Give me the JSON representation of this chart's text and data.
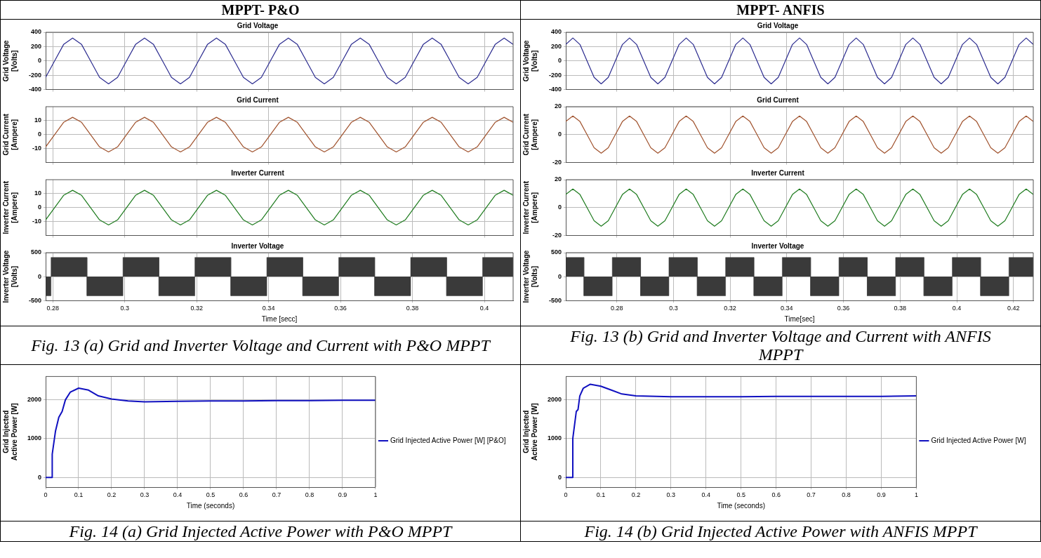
{
  "chart_data": [
    {
      "type": "line",
      "title": "Grid Voltage",
      "ylabel": "Grid Voltage\n[Volts]",
      "annotations": [
        "MPPT- P&O"
      ],
      "xlim": [
        0.278,
        0.408
      ],
      "xticks": [
        0.28,
        0.3,
        0.32,
        0.34,
        0.36,
        0.38,
        0.4
      ],
      "ylim": [
        -400,
        400
      ],
      "yticks": [
        -400,
        -200,
        0,
        200,
        400
      ],
      "grid": true,
      "tick_labels": "y",
      "x": [
        0.278,
        0.2805,
        0.283,
        0.2855,
        0.288,
        0.2905,
        0.293,
        0.2955,
        0.298,
        0.3005,
        0.303,
        0.3055,
        0.308,
        0.3105,
        0.313,
        0.3155,
        0.318,
        0.3205,
        0.323,
        0.3255,
        0.328,
        0.3305,
        0.333,
        0.3355,
        0.338,
        0.3405,
        0.343,
        0.3455,
        0.348,
        0.3505,
        0.353,
        0.3555,
        0.358,
        0.3605,
        0.363,
        0.3655,
        0.368,
        0.3705,
        0.373,
        0.3755,
        0.378,
        0.3805,
        0.383,
        0.3855,
        0.388,
        0.3905,
        0.393,
        0.3955,
        0.398,
        0.4005,
        0.403,
        0.4055,
        0.408
      ],
      "series": [
        {
          "color": "#2b2b8f",
          "values": [
            -230,
            0,
            230,
            320,
            230,
            0,
            -230,
            -320,
            -230,
            0,
            230,
            320,
            230,
            0,
            -230,
            -320,
            -230,
            0,
            230,
            320,
            230,
            0,
            -230,
            -320,
            -230,
            0,
            230,
            320,
            230,
            0,
            -230,
            -320,
            -230,
            0,
            230,
            320,
            230,
            0,
            -230,
            -320,
            -230,
            0,
            230,
            320,
            230,
            0,
            -230,
            -320,
            -230,
            0,
            230,
            320,
            230
          ]
        }
      ]
    },
    {
      "type": "line",
      "title": "Grid Current",
      "ylabel": "Grid Current\n[Ampere]",
      "xlim": [
        0.278,
        0.408
      ],
      "xticks": [
        0.28,
        0.3,
        0.32,
        0.34,
        0.36,
        0.38,
        0.4
      ],
      "ylim": [
        -20,
        20
      ],
      "yticks": [
        -10,
        0,
        10
      ],
      "grid": true,
      "tick_labels": "y",
      "x": [
        0.278,
        0.2805,
        0.283,
        0.2855,
        0.288,
        0.2905,
        0.293,
        0.2955,
        0.298,
        0.3005,
        0.303,
        0.3055,
        0.308,
        0.3105,
        0.313,
        0.3155,
        0.318,
        0.3205,
        0.323,
        0.3255,
        0.328,
        0.3305,
        0.333,
        0.3355,
        0.338,
        0.3405,
        0.343,
        0.3455,
        0.348,
        0.3505,
        0.353,
        0.3555,
        0.358,
        0.3605,
        0.363,
        0.3655,
        0.368,
        0.3705,
        0.373,
        0.3755,
        0.378,
        0.3805,
        0.383,
        0.3855,
        0.388,
        0.3905,
        0.393,
        0.3955,
        0.398,
        0.4005,
        0.403,
        0.4055,
        0.408
      ],
      "series": [
        {
          "color": "#a0522d",
          "values": [
            -8.8,
            0,
            8.8,
            12.4,
            8.8,
            0,
            -8.8,
            -12.4,
            -8.8,
            0,
            8.8,
            12.4,
            8.8,
            0,
            -8.8,
            -12.4,
            -8.8,
            0,
            8.8,
            12.4,
            8.8,
            0,
            -8.8,
            -12.4,
            -8.8,
            0,
            8.8,
            12.4,
            8.8,
            0,
            -8.8,
            -12.4,
            -8.8,
            0,
            8.8,
            12.4,
            8.8,
            0,
            -8.8,
            -12.4,
            -8.8,
            0,
            8.8,
            12.4,
            8.8,
            0,
            -8.8,
            -12.4,
            -8.8,
            0,
            8.8,
            12.4,
            8.8
          ]
        }
      ]
    },
    {
      "type": "line",
      "title": "Inverter Current",
      "ylabel": "Inverter Current\n[Ampere]",
      "xlim": [
        0.278,
        0.408
      ],
      "xticks": [
        0.28,
        0.3,
        0.32,
        0.34,
        0.36,
        0.38,
        0.4
      ],
      "ylim": [
        -20,
        20
      ],
      "yticks": [
        -10,
        0,
        10
      ],
      "grid": true,
      "tick_labels": "y",
      "x": [
        0.278,
        0.2805,
        0.283,
        0.2855,
        0.288,
        0.2905,
        0.293,
        0.2955,
        0.298,
        0.3005,
        0.303,
        0.3055,
        0.308,
        0.3105,
        0.313,
        0.3155,
        0.318,
        0.3205,
        0.323,
        0.3255,
        0.328,
        0.3305,
        0.333,
        0.3355,
        0.338,
        0.3405,
        0.343,
        0.3455,
        0.348,
        0.3505,
        0.353,
        0.3555,
        0.358,
        0.3605,
        0.363,
        0.3655,
        0.368,
        0.3705,
        0.373,
        0.3755,
        0.378,
        0.3805,
        0.383,
        0.3855,
        0.388,
        0.3905,
        0.393,
        0.3955,
        0.398,
        0.4005,
        0.403,
        0.4055,
        0.408
      ],
      "series": [
        {
          "color": "#1e7b1e",
          "values": [
            -8.8,
            0,
            8.8,
            12.4,
            8.8,
            0,
            -8.8,
            -12.4,
            -8.8,
            0,
            8.8,
            12.4,
            8.8,
            0,
            -8.8,
            -12.4,
            -8.8,
            0,
            8.8,
            12.4,
            8.8,
            0,
            -8.8,
            -12.4,
            -8.8,
            0,
            8.8,
            12.4,
            8.8,
            0,
            -8.8,
            -12.4,
            -8.8,
            0,
            8.8,
            12.4,
            8.8,
            0,
            -8.8,
            -12.4,
            -8.8,
            0,
            8.8,
            12.4,
            8.8,
            0,
            -8.8,
            -12.4,
            -8.8,
            0,
            8.8,
            12.4,
            8.8
          ]
        }
      ]
    },
    {
      "type": "area",
      "title": "Inverter Voltage",
      "ylabel": "Inverter Voltage\n[Volts]",
      "xlabel": "Time [secc]",
      "annotations": [
        "Fig. 13 (a)  Grid and Inverter Voltage and Current with P&O MPPT"
      ],
      "xlim": [
        0.278,
        0.408
      ],
      "xticks": [
        0.28,
        0.3,
        0.32,
        0.34,
        0.36,
        0.38,
        0.4
      ],
      "ylim": [
        -500,
        500
      ],
      "yticks": [
        -500,
        0,
        500
      ],
      "grid": true,
      "x": [
        0.278,
        0.2795,
        0.2795,
        0.2895,
        0.2895,
        0.2995,
        0.2995,
        0.3095,
        0.3095,
        0.3195,
        0.3195,
        0.3295,
        0.3295,
        0.3395,
        0.3395,
        0.3495,
        0.3495,
        0.3595,
        0.3595,
        0.3695,
        0.3695,
        0.3795,
        0.3795,
        0.3895,
        0.3895,
        0.3995,
        0.3995,
        0.408
      ],
      "series": [
        {
          "color": "#3a3a3a",
          "values": [
            -400,
            -400,
            400,
            400,
            -400,
            -400,
            400,
            400,
            -400,
            -400,
            400,
            400,
            -400,
            -400,
            400,
            400,
            -400,
            -400,
            400,
            400,
            -400,
            -400,
            400,
            400,
            -400,
            -400,
            400,
            400
          ]
        }
      ]
    },
    {
      "type": "line",
      "title": "Grid Voltage",
      "ylabel": "Grid Voltage\n[Volts]",
      "annotations": [
        "MPPT- ANFIS"
      ],
      "xlim": [
        0.262,
        0.427
      ],
      "xticks": [
        0.28,
        0.3,
        0.32,
        0.34,
        0.36,
        0.38,
        0.4,
        0.42
      ],
      "ylim": [
        -400,
        400
      ],
      "yticks": [
        -400,
        -200,
        0,
        200,
        400
      ],
      "grid": true,
      "tick_labels": "y",
      "x": [
        0.262,
        0.2645,
        0.267,
        0.2695,
        0.272,
        0.2745,
        0.277,
        0.2795,
        0.282,
        0.2845,
        0.287,
        0.2895,
        0.292,
        0.2945,
        0.297,
        0.2995,
        0.302,
        0.3045,
        0.307,
        0.3095,
        0.312,
        0.3145,
        0.317,
        0.3195,
        0.322,
        0.3245,
        0.327,
        0.3295,
        0.332,
        0.3345,
        0.337,
        0.3395,
        0.342,
        0.3445,
        0.347,
        0.3495,
        0.352,
        0.3545,
        0.357,
        0.3595,
        0.362,
        0.3645,
        0.367,
        0.3695,
        0.372,
        0.3745,
        0.377,
        0.3795,
        0.382,
        0.3845,
        0.387,
        0.3895,
        0.392,
        0.3945,
        0.397,
        0.3995,
        0.402,
        0.4045,
        0.407,
        0.4095,
        0.412,
        0.4145,
        0.417,
        0.4195,
        0.422,
        0.4245,
        0.427
      ],
      "series": [
        {
          "color": "#2b2b8f",
          "values": [
            230,
            320,
            230,
            0,
            -230,
            -320,
            -230,
            0,
            230,
            320,
            230,
            0,
            -230,
            -320,
            -230,
            0,
            230,
            320,
            230,
            0,
            -230,
            -320,
            -230,
            0,
            230,
            320,
            230,
            0,
            -230,
            -320,
            -230,
            0,
            230,
            320,
            230,
            0,
            -230,
            -320,
            -230,
            0,
            230,
            320,
            230,
            0,
            -230,
            -320,
            -230,
            0,
            230,
            320,
            230,
            0,
            -230,
            -320,
            -230,
            0,
            230,
            320,
            230,
            0,
            -230,
            -320,
            -230,
            0,
            230,
            320,
            230
          ]
        }
      ]
    },
    {
      "type": "line",
      "title": "Grid Current",
      "ylabel": "Grid Current\n[Ampere]",
      "xlim": [
        0.262,
        0.427
      ],
      "xticks": [
        0.28,
        0.3,
        0.32,
        0.34,
        0.36,
        0.38,
        0.4,
        0.42
      ],
      "ylim": [
        -20,
        20
      ],
      "yticks": [
        -20,
        0,
        20
      ],
      "grid": true,
      "tick_labels": "y",
      "x": [
        0.262,
        0.2645,
        0.267,
        0.2695,
        0.272,
        0.2745,
        0.277,
        0.2795,
        0.282,
        0.2845,
        0.287,
        0.2895,
        0.292,
        0.2945,
        0.297,
        0.2995,
        0.302,
        0.3045,
        0.307,
        0.3095,
        0.312,
        0.3145,
        0.317,
        0.3195,
        0.322,
        0.3245,
        0.327,
        0.3295,
        0.332,
        0.3345,
        0.337,
        0.3395,
        0.342,
        0.3445,
        0.347,
        0.3495,
        0.352,
        0.3545,
        0.357,
        0.3595,
        0.362,
        0.3645,
        0.367,
        0.3695,
        0.372,
        0.3745,
        0.377,
        0.3795,
        0.382,
        0.3845,
        0.387,
        0.3895,
        0.392,
        0.3945,
        0.397,
        0.3995,
        0.402,
        0.4045,
        0.407,
        0.4095,
        0.412,
        0.4145,
        0.417,
        0.4195,
        0.422,
        0.4245,
        0.427
      ],
      "series": [
        {
          "color": "#a0522d",
          "values": [
            9.4,
            13.3,
            9.4,
            0,
            -9.4,
            -13.3,
            -9.4,
            0,
            9.4,
            13.3,
            9.4,
            0,
            -9.4,
            -13.3,
            -9.4,
            0,
            9.4,
            13.3,
            9.4,
            0,
            -9.4,
            -13.3,
            -9.4,
            0,
            9.4,
            13.3,
            9.4,
            0,
            -9.4,
            -13.3,
            -9.4,
            0,
            9.4,
            13.3,
            9.4,
            0,
            -9.4,
            -13.3,
            -9.4,
            0,
            9.4,
            13.3,
            9.4,
            0,
            -9.4,
            -13.3,
            -9.4,
            0,
            9.4,
            13.3,
            9.4,
            0,
            -9.4,
            -13.3,
            -9.4,
            0,
            9.4,
            13.3,
            9.4,
            0,
            -9.4,
            -13.3,
            -9.4,
            0,
            9.4,
            13.3,
            9.4
          ]
        }
      ]
    },
    {
      "type": "line",
      "title": "Inverter Current",
      "ylabel": "Inverter Current\n[Ampere]",
      "xlim": [
        0.262,
        0.427
      ],
      "xticks": [
        0.28,
        0.3,
        0.32,
        0.34,
        0.36,
        0.38,
        0.4,
        0.42
      ],
      "ylim": [
        -20,
        20
      ],
      "yticks": [
        -20,
        0,
        20
      ],
      "grid": true,
      "tick_labels": "y",
      "x": [
        0.262,
        0.2645,
        0.267,
        0.2695,
        0.272,
        0.2745,
        0.277,
        0.2795,
        0.282,
        0.2845,
        0.287,
        0.2895,
        0.292,
        0.2945,
        0.297,
        0.2995,
        0.302,
        0.3045,
        0.307,
        0.3095,
        0.312,
        0.3145,
        0.317,
        0.3195,
        0.322,
        0.3245,
        0.327,
        0.3295,
        0.332,
        0.3345,
        0.337,
        0.3395,
        0.342,
        0.3445,
        0.347,
        0.3495,
        0.352,
        0.3545,
        0.357,
        0.3595,
        0.362,
        0.3645,
        0.367,
        0.3695,
        0.372,
        0.3745,
        0.377,
        0.3795,
        0.382,
        0.3845,
        0.387,
        0.3895,
        0.392,
        0.3945,
        0.397,
        0.3995,
        0.402,
        0.4045,
        0.407,
        0.4095,
        0.412,
        0.4145,
        0.417,
        0.4195,
        0.422,
        0.4245,
        0.427
      ],
      "series": [
        {
          "color": "#1e7b1e",
          "values": [
            9.4,
            13.3,
            9.4,
            0,
            -9.4,
            -13.3,
            -9.4,
            0,
            9.4,
            13.3,
            9.4,
            0,
            -9.4,
            -13.3,
            -9.4,
            0,
            9.4,
            13.3,
            9.4,
            0,
            -9.4,
            -13.3,
            -9.4,
            0,
            9.4,
            13.3,
            9.4,
            0,
            -9.4,
            -13.3,
            -9.4,
            0,
            9.4,
            13.3,
            9.4,
            0,
            -9.4,
            -13.3,
            -9.4,
            0,
            9.4,
            13.3,
            9.4,
            0,
            -9.4,
            -13.3,
            -9.4,
            0,
            9.4,
            13.3,
            9.4,
            0,
            -9.4,
            -13.3,
            -9.4,
            0,
            9.4,
            13.3,
            9.4,
            0,
            -9.4,
            -13.3,
            -9.4,
            0,
            9.4,
            13.3,
            9.4
          ]
        }
      ]
    },
    {
      "type": "area",
      "title": "Inverter Voltage",
      "ylabel": "Inverter Voltage\n[Volts]",
      "xlabel": "Time[sec]",
      "annotations": [
        "Fig. 13 (b)  Grid and Inverter Voltage and Current with ANFIS MPPT"
      ],
      "xlim": [
        0.262,
        0.427
      ],
      "xticks": [
        0.28,
        0.3,
        0.32,
        0.34,
        0.36,
        0.38,
        0.4,
        0.42
      ],
      "ylim": [
        -500,
        500
      ],
      "yticks": [
        -500,
        0,
        500
      ],
      "grid": true,
      "x": [
        0.262,
        0.2684,
        0.2684,
        0.2784,
        0.2784,
        0.2884,
        0.2884,
        0.2984,
        0.2984,
        0.3084,
        0.3084,
        0.3184,
        0.3184,
        0.3284,
        0.3284,
        0.3384,
        0.3384,
        0.3484,
        0.3484,
        0.3584,
        0.3584,
        0.3684,
        0.3684,
        0.3784,
        0.3784,
        0.3884,
        0.3884,
        0.3984,
        0.3984,
        0.4084,
        0.4084,
        0.4184,
        0.4184,
        0.427
      ],
      "series": [
        {
          "color": "#3a3a3a",
          "values": [
            400,
            400,
            -400,
            -400,
            400,
            400,
            -400,
            -400,
            400,
            400,
            -400,
            -400,
            400,
            400,
            -400,
            -400,
            400,
            400,
            -400,
            -400,
            400,
            400,
            -400,
            -400,
            400,
            400,
            -400,
            -400,
            400,
            400,
            -400,
            -400,
            400,
            400
          ]
        }
      ]
    },
    {
      "type": "line",
      "ylabel": "Grid Injected\nActive Power [W]",
      "xlabel": "Time (seconds)",
      "annotations": [
        "Fig. 14 (a)  Grid Injected Active Power with P&O MPPT"
      ],
      "xlim": [
        0,
        1
      ],
      "xticks": [
        0,
        0.1,
        0.2,
        0.3,
        0.4,
        0.5,
        0.6,
        0.7,
        0.8,
        0.9,
        1
      ],
      "ylim": [
        -250,
        2600
      ],
      "yticks": [
        0,
        1000,
        2000
      ],
      "grid": true,
      "legend": "right",
      "x": [
        0,
        0.02,
        0.02,
        0.03,
        0.04,
        0.05,
        0.06,
        0.075,
        0.1,
        0.13,
        0.16,
        0.2,
        0.25,
        0.3,
        0.4,
        0.5,
        0.6,
        0.7,
        0.8,
        0.9,
        1
      ],
      "series": [
        {
          "name": "Grid Injected Active Power [W] [P&O]",
          "color": "#1010c0",
          "values": [
            0,
            0,
            600,
            1200,
            1550,
            1700,
            2000,
            2200,
            2300,
            2250,
            2100,
            2020,
            1970,
            1950,
            1960,
            1970,
            1970,
            1980,
            1980,
            1990,
            1990
          ]
        }
      ]
    },
    {
      "type": "line",
      "ylabel": "Grid Injected\nActive Power [W]",
      "xlabel": "Time (seconds)",
      "annotations": [
        "Fig. 14 (b)  Grid Injected Active Power with ANFIS MPPT"
      ],
      "xlim": [
        0,
        1
      ],
      "xticks": [
        0,
        0.1,
        0.2,
        0.3,
        0.4,
        0.5,
        0.6,
        0.7,
        0.8,
        0.9,
        1
      ],
      "ylim": [
        -250,
        2600
      ],
      "yticks": [
        0,
        1000,
        2000
      ],
      "grid": true,
      "legend": "right",
      "x": [
        0,
        0.02,
        0.02,
        0.03,
        0.035,
        0.04,
        0.05,
        0.07,
        0.1,
        0.13,
        0.16,
        0.2,
        0.3,
        0.4,
        0.5,
        0.6,
        0.7,
        0.8,
        0.9,
        1
      ],
      "series": [
        {
          "name": "Grid Injected Active Power [W]",
          "color": "#1010c0",
          "values": [
            0,
            0,
            1000,
            1700,
            1750,
            2100,
            2300,
            2400,
            2350,
            2250,
            2150,
            2100,
            2080,
            2080,
            2080,
            2090,
            2090,
            2090,
            2090,
            2100
          ]
        }
      ]
    }
  ]
}
